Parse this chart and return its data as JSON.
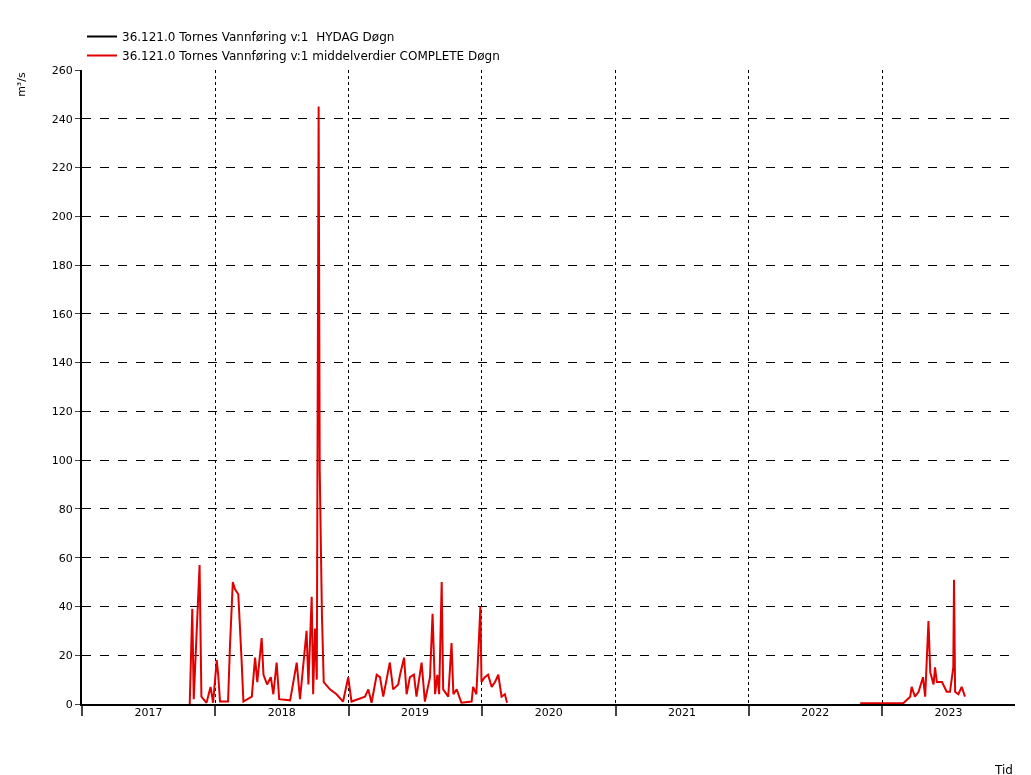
{
  "chart_data": {
    "type": "line",
    "xlabel": "Tid",
    "ylabel": "m³/s",
    "x": [
      "2017-10-23",
      "2017-10-30",
      "2017-11-03",
      "2017-11-19",
      "2017-11-24",
      "2017-12-08",
      "2017-12-19",
      "2017-12-26",
      "2018-01-05",
      "2018-01-09",
      "2018-01-14",
      "2018-02-05",
      "2018-02-10",
      "2018-02-18",
      "2018-02-24",
      "2018-03-05",
      "2018-03-10",
      "2018-03-14",
      "2018-03-19",
      "2018-04-11",
      "2018-04-20",
      "2018-04-26",
      "2018-05-08",
      "2018-05-13",
      "2018-05-23",
      "2018-06-02",
      "2018-06-09",
      "2018-06-18",
      "2018-06-25",
      "2018-07-25",
      "2018-08-12",
      "2018-08-21",
      "2018-09-08",
      "2018-09-13",
      "2018-09-22",
      "2018-09-26",
      "2018-10-01",
      "2018-10-06",
      "2018-10-11",
      "2018-10-14",
      "2018-10-20",
      "2018-10-25",
      "2018-11-11",
      "2018-11-29",
      "2018-12-17",
      "2018-12-31",
      "2019-01-09",
      "2019-02-15",
      "2019-02-24",
      "2019-03-05",
      "2019-03-19",
      "2019-03-28",
      "2019-04-06",
      "2019-04-24",
      "2019-05-03",
      "2019-05-17",
      "2019-05-22",
      "2019-06-02",
      "2019-06-09",
      "2019-06-18",
      "2019-06-29",
      "2019-07-06",
      "2019-07-20",
      "2019-07-29",
      "2019-08-12",
      "2019-08-19",
      "2019-08-26",
      "2019-09-01",
      "2019-09-06",
      "2019-09-13",
      "2019-09-17",
      "2019-10-01",
      "2019-10-10",
      "2019-10-15",
      "2019-10-24",
      "2019-11-06",
      "2019-12-04",
      "2019-12-08",
      "2019-12-17",
      "2019-12-28",
      "2019-12-31",
      "2020-01-09",
      "2020-01-18",
      "2020-01-28",
      "2020-02-06",
      "2020-02-15",
      "2020-02-24",
      "2020-03-04",
      "2020-03-10",
      "2021-06-01",
      "2022-11-02",
      "2022-12-04",
      "2022-12-27",
      "2023-01-18",
      "2023-02-19",
      "2023-02-28",
      "2023-03-19",
      "2023-03-23",
      "2023-04-01",
      "2023-04-11",
      "2023-04-23",
      "2023-04-29",
      "2023-05-08",
      "2023-05-13",
      "2023-05-22",
      "2023-05-26",
      "2023-05-31",
      "2023-06-14",
      "2023-06-27",
      "2023-07-06",
      "2023-07-15",
      "2023-07-17",
      "2023-07-20",
      "2023-07-29",
      "2023-08-07",
      "2023-08-16"
    ],
    "series": [
      {
        "name": "36.121.0 Tornes Vannføring v:1  HYDAG Døgn",
        "color": "#000000",
        "values": [
          null,
          null,
          null,
          null,
          null,
          null,
          null,
          null,
          null,
          null,
          null,
          null,
          null,
          null,
          null,
          null,
          null,
          null,
          null,
          null,
          null,
          null,
          null,
          null,
          null,
          null,
          null,
          null,
          null,
          null,
          null,
          null,
          null,
          null,
          null,
          null,
          null,
          null,
          null,
          null,
          null,
          null,
          null,
          null,
          null,
          null,
          null,
          null,
          null,
          null,
          null,
          null,
          null,
          null,
          null,
          null,
          null,
          null,
          null,
          null,
          null,
          null,
          null,
          null,
          null,
          null,
          null,
          null,
          null,
          null,
          null,
          null,
          null,
          null,
          null,
          null,
          null,
          null,
          null,
          null,
          null,
          null,
          null,
          null,
          null,
          null,
          null,
          null,
          null,
          null,
          null,
          null,
          null,
          null,
          null,
          null,
          null,
          null,
          null,
          null,
          null,
          null,
          null,
          null,
          null,
          null,
          null,
          null,
          null,
          null,
          null,
          null,
          null,
          null,
          null,
          null
        ]
      },
      {
        "name": "36.121.0 Tornes Vannføring v:1 middelverdier COMPLETE Døgn",
        "color": "#e00000",
        "values": [
          0,
          39,
          2,
          57,
          3,
          0.5,
          7,
          0.5,
          18,
          12,
          1,
          1,
          23,
          50,
          47,
          45,
          30,
          18,
          1,
          3,
          19,
          9,
          27,
          12,
          8,
          11,
          4,
          17,
          2,
          1.5,
          17,
          2,
          30,
          8,
          44,
          4,
          31,
          10,
          245,
          96,
          37,
          9,
          6,
          4,
          1,
          11,
          1,
          3,
          6,
          0.5,
          12,
          11,
          3,
          17,
          6,
          8,
          12,
          19,
          4,
          11,
          12,
          3,
          17,
          1,
          11,
          37,
          4,
          12,
          4,
          50,
          6,
          3,
          25,
          4,
          6,
          0.5,
          1,
          7,
          4,
          40,
          9,
          11,
          12,
          7,
          9,
          12,
          3,
          4,
          0.5,
          null,
          0.3,
          0.3,
          0.3,
          0.3,
          0.3,
          0.3,
          3,
          7,
          3,
          5,
          11,
          3,
          34,
          13,
          8,
          15,
          9,
          9,
          5,
          5,
          15,
          51,
          5,
          4,
          7,
          3
        ]
      }
    ],
    "xlim": [
      "2017-01-01",
      "2023-12-31"
    ],
    "xticks": [
      {
        "value": "2017-01-01",
        "label": null
      },
      {
        "value": "2017-07-02",
        "label": "2017"
      },
      {
        "value": "2018-01-01",
        "label": null
      },
      {
        "value": "2018-07-02",
        "label": "2018"
      },
      {
        "value": "2019-01-01",
        "label": null
      },
      {
        "value": "2019-07-02",
        "label": "2019"
      },
      {
        "value": "2020-01-01",
        "label": null
      },
      {
        "value": "2020-07-02",
        "label": "2020"
      },
      {
        "value": "2021-01-01",
        "label": null
      },
      {
        "value": "2021-07-02",
        "label": "2021"
      },
      {
        "value": "2022-01-01",
        "label": null
      },
      {
        "value": "2022-07-02",
        "label": "2022"
      },
      {
        "value": "2023-01-01",
        "label": null
      },
      {
        "value": "2023-07-02",
        "label": "2023"
      }
    ],
    "ylim": [
      0,
      260
    ],
    "yticks": [
      0,
      20,
      40,
      60,
      80,
      100,
      120,
      140,
      160,
      180,
      200,
      220,
      240,
      260
    ],
    "grid": true,
    "legend": "top left",
    "marker": "none",
    "line_style": "solid"
  }
}
